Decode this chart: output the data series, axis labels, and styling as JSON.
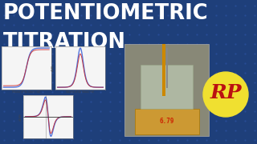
{
  "bg_color": "#1e3f7a",
  "title_line1": "POTENTIOMETRIC",
  "title_line2": "TITRATION",
  "title_color": "#ffffff",
  "grid_color": "#2a4f9a",
  "rp_circle_color": "#f0e030",
  "rp_text_color": "#bb1111",
  "rp_text": "RP",
  "chart_bg": "#f5f5f5",
  "line_color_blue": "#5577dd",
  "line_color_red": "#cc2222",
  "lab_bg": "#888877",
  "stand_color": "#cc9933",
  "display_color": "#cc2200",
  "display_text": "6.79"
}
